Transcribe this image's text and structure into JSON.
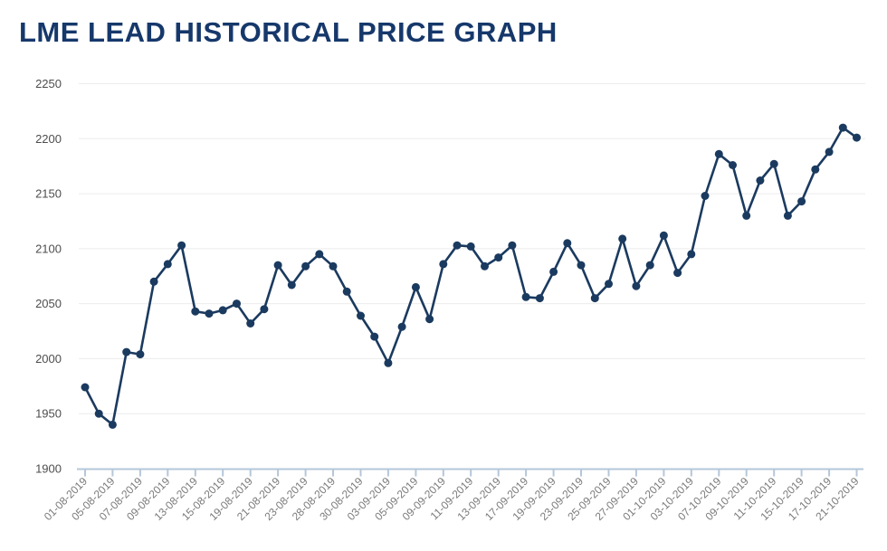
{
  "page": {
    "title": "LME LEAD HISTORICAL PRICE GRAPH"
  },
  "chart_data": {
    "type": "line",
    "title": "LME LEAD HISTORICAL PRICE GRAPH",
    "xlabel": "",
    "ylabel": "",
    "ylim": [
      1900,
      2250
    ],
    "y_ticks": [
      2250,
      2200,
      2150,
      2100,
      2050,
      2000,
      1950,
      1900
    ],
    "grid": "horizontal-only",
    "legend": "none",
    "marker": "filled-circle",
    "n_points": 57,
    "x_label_every": 2,
    "x_tick_labels": [
      "01-08-2019",
      "05-08-2019",
      "07-08-2019",
      "09-08-2019",
      "13-08-2019",
      "15-08-2019",
      "19-08-2019",
      "21-08-2019",
      "23-08-2019",
      "28-08-2019",
      "30-08-2019",
      "03-09-2019",
      "05-09-2019",
      "09-09-2019",
      "11-09-2019",
      "13-09-2019",
      "17-09-2019",
      "19-09-2019",
      "23-09-2019",
      "25-09-2019",
      "27-09-2019",
      "01-10-2019",
      "03-10-2019",
      "07-10-2019",
      "09-10-2019",
      "11-10-2019",
      "15-10-2019",
      "17-10-2019",
      "21-10-2019"
    ],
    "series": [
      {
        "name": "LME Lead",
        "values": [
          1974,
          1950,
          1940,
          2006,
          2004,
          2070,
          2086,
          2103,
          2043,
          2041,
          2044,
          2050,
          2032,
          2045,
          2085,
          2067,
          2084,
          2095,
          2084,
          2061,
          2039,
          2020,
          1996,
          2029,
          2065,
          2036,
          2086,
          2103,
          2102,
          2084,
          2092,
          2103,
          2056,
          2055,
          2079,
          2105,
          2085,
          2055,
          2068,
          2109,
          2066,
          2085,
          2112,
          2078,
          2095,
          2148,
          2186,
          2176,
          2130,
          2162,
          2177,
          2130,
          2143,
          2172,
          2188,
          2210,
          2201
        ]
      }
    ],
    "colors": {
      "line": "#1b3a5f",
      "marker": "#1b3a5f",
      "title": "#16386b",
      "grid": "#ececec",
      "axis": "#b4c7da",
      "y_tick_text": "#4d4d4d",
      "x_tick_text": "#7a7a7a",
      "background": "#ffffff"
    }
  }
}
